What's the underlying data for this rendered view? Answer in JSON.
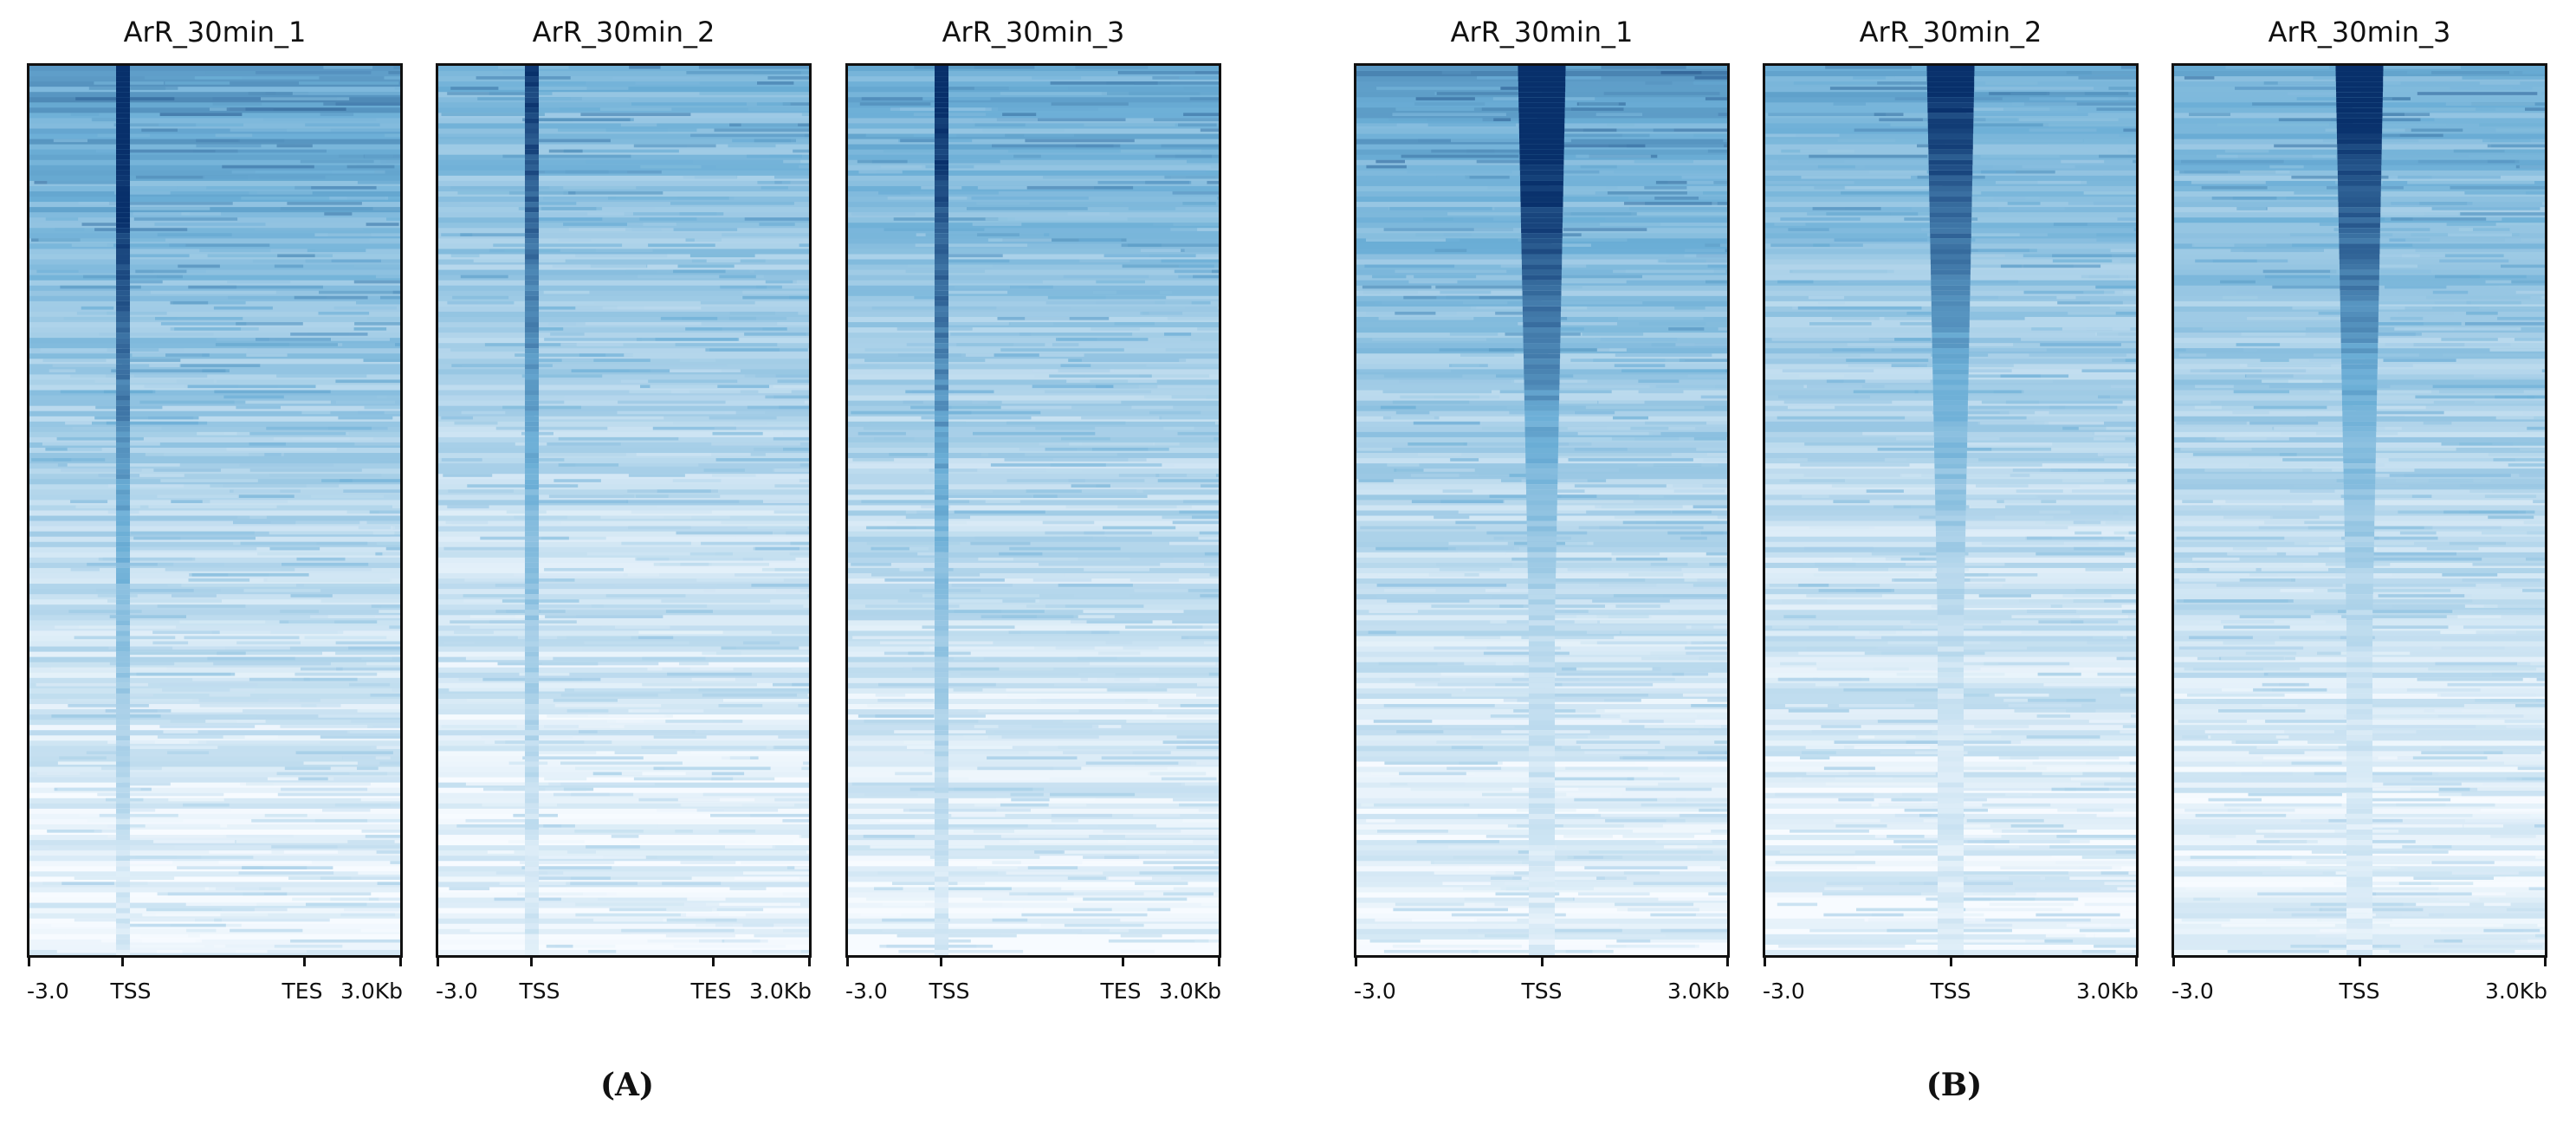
{
  "figure": {
    "groups": [
      {
        "label": "(A)",
        "profile": "genebody",
        "panels": [
          {
            "title": "ArR_30min_1",
            "intensity": 1.0
          },
          {
            "title": "ArR_30min_2",
            "intensity": 0.82
          },
          {
            "title": "ArR_30min_3",
            "intensity": 0.9
          }
        ],
        "x_ticks": [
          "-3.0",
          "TSS",
          "TES",
          "3.0Kb"
        ]
      },
      {
        "label": "(B)",
        "profile": "center",
        "panels": [
          {
            "title": "ArR_30min_1",
            "intensity": 1.0
          },
          {
            "title": "ArR_30min_2",
            "intensity": 0.85
          },
          {
            "title": "ArR_30min_3",
            "intensity": 0.88
          }
        ],
        "x_ticks": [
          "-3.0",
          "TSS",
          "3.0Kb"
        ]
      }
    ]
  },
  "chart_data": [
    {
      "type": "heatmap",
      "title": "ArR_30min_1",
      "x_ticks": [
        "-3.0",
        "TSS",
        "TES",
        "3.0Kb"
      ],
      "colormap": "Blues",
      "colors": {
        "low": "#f7fbff",
        "high": "#08306b"
      },
      "rows_sorted_by": "descending signal"
    },
    {
      "type": "heatmap",
      "title": "ArR_30min_2",
      "x_ticks": [
        "-3.0",
        "TSS",
        "TES",
        "3.0Kb"
      ],
      "colormap": "Blues",
      "colors": {
        "low": "#f7fbff",
        "high": "#08306b"
      },
      "rows_sorted_by": "descending signal"
    },
    {
      "type": "heatmap",
      "title": "ArR_30min_3",
      "x_ticks": [
        "-3.0",
        "TSS",
        "TES",
        "3.0Kb"
      ],
      "colormap": "Blues",
      "colors": {
        "low": "#f7fbff",
        "high": "#08306b"
      },
      "rows_sorted_by": "descending signal"
    },
    {
      "type": "heatmap",
      "title": "ArR_30min_1",
      "x_ticks": [
        "-3.0",
        "TSS",
        "3.0Kb"
      ],
      "colormap": "Blues",
      "colors": {
        "low": "#f7fbff",
        "high": "#08306b"
      },
      "rows_sorted_by": "descending signal"
    },
    {
      "type": "heatmap",
      "title": "ArR_30min_2",
      "x_ticks": [
        "-3.0",
        "TSS",
        "3.0Kb"
      ],
      "colormap": "Blues",
      "colors": {
        "low": "#f7fbff",
        "high": "#08306b"
      },
      "rows_sorted_by": "descending signal"
    },
    {
      "type": "heatmap",
      "title": "ArR_30min_3",
      "x_ticks": [
        "-3.0",
        "TSS",
        "3.0Kb"
      ],
      "colormap": "Blues",
      "colors": {
        "low": "#f7fbff",
        "high": "#08306b"
      },
      "rows_sorted_by": "descending signal"
    }
  ]
}
